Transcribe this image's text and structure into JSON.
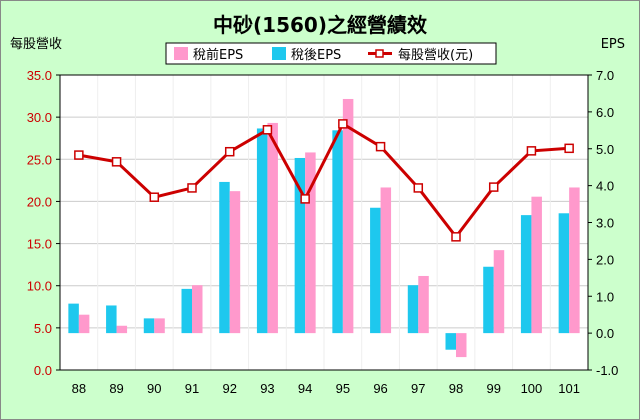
{
  "chart_data": {
    "type": "bar",
    "title": "中砂(1560)之經營績效",
    "y_left_label": "每股營收",
    "y_right_label": "EPS",
    "categories": [
      "88",
      "89",
      "90",
      "91",
      "92",
      "93",
      "94",
      "95",
      "96",
      "97",
      "98",
      "99",
      "100",
      "101"
    ],
    "y_left_ticks": [
      "35.0",
      "30.0",
      "25.0",
      "20.0",
      "15.0",
      "10.0",
      "5.0",
      "0.0"
    ],
    "y_right_ticks": [
      "7.0",
      "6.0",
      "5.0",
      "4.0",
      "3.0",
      "2.0",
      "1.0",
      "0.0",
      "-1.0"
    ],
    "y_left_range": [
      0,
      35
    ],
    "y_right_range": [
      -1,
      7
    ],
    "legend_placement": "top-center",
    "grid": true,
    "series": [
      {
        "name": "稅前EPS",
        "axis": "right",
        "kind": "bar",
        "color": "#ff99cc",
        "values": [
          0.5,
          0.2,
          0.4,
          1.3,
          3.85,
          5.7,
          4.9,
          6.35,
          3.95,
          1.55,
          -0.65,
          2.25,
          3.7,
          3.95
        ]
      },
      {
        "name": "稅後EPS",
        "axis": "right",
        "kind": "bar",
        "color": "#1ec8ee",
        "values": [
          0.8,
          0.75,
          0.4,
          1.2,
          4.1,
          5.55,
          4.75,
          5.5,
          3.4,
          1.3,
          -0.45,
          1.8,
          3.2,
          3.25
        ]
      },
      {
        "name": "每股營收(元)",
        "axis": "left",
        "kind": "line",
        "color": "#cc0000",
        "values": [
          25.5,
          24.7,
          20.5,
          21.6,
          25.9,
          28.5,
          20.3,
          29.2,
          26.5,
          21.6,
          15.8,
          21.7,
          26.0,
          26.3
        ]
      }
    ]
  },
  "colors": {
    "page_background": "#ccffcc",
    "plot_background": "#ffffff",
    "frame": "#000000",
    "grid": "#cccccc",
    "tick_text_left": "#cc0000",
    "tick_text_right": "#000000"
  }
}
